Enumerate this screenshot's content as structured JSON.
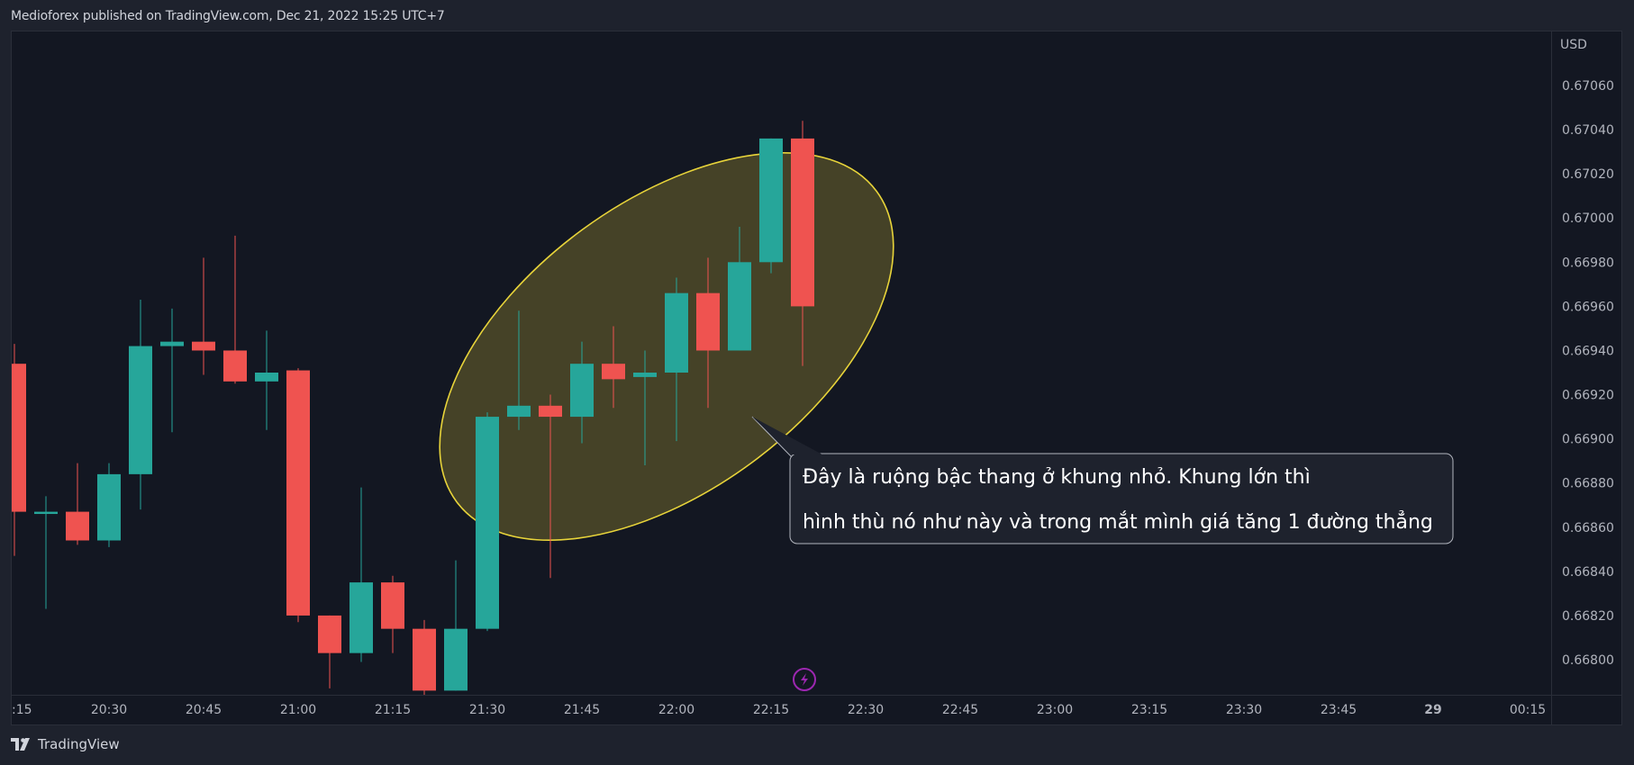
{
  "header": {
    "published": "Medioforex published on TradingView.com, Dec 21, 2022 15:25 UTC+7"
  },
  "footer": {
    "brand": "TradingView"
  },
  "chart_data": {
    "type": "candlestick",
    "currency": "USD",
    "price_axis": [
      "0.67060",
      "0.67040",
      "0.67020",
      "0.67000",
      "0.66980",
      "0.66960",
      "0.66940",
      "0.66920",
      "0.66900",
      "0.66880",
      "0.66860",
      "0.66840",
      "0.66820",
      "0.66800"
    ],
    "time_axis": [
      {
        "label": ":15",
        "t": "20:15",
        "bold": false
      },
      {
        "label": "20:30",
        "t": "20:30",
        "bold": false
      },
      {
        "label": "20:45",
        "t": "20:45",
        "bold": false
      },
      {
        "label": "21:00",
        "t": "21:00",
        "bold": false
      },
      {
        "label": "21:15",
        "t": "21:15",
        "bold": false
      },
      {
        "label": "21:30",
        "t": "21:30",
        "bold": false
      },
      {
        "label": "21:45",
        "t": "21:45",
        "bold": false
      },
      {
        "label": "22:00",
        "t": "22:00",
        "bold": false
      },
      {
        "label": "22:15",
        "t": "22:15",
        "bold": false
      },
      {
        "label": "22:30",
        "t": "22:30",
        "bold": false
      },
      {
        "label": "22:45",
        "t": "22:45",
        "bold": false
      },
      {
        "label": "23:00",
        "t": "23:00",
        "bold": false
      },
      {
        "label": "23:15",
        "t": "23:15",
        "bold": false
      },
      {
        "label": "23:30",
        "t": "23:30",
        "bold": false
      },
      {
        "label": "23:45",
        "t": "23:45",
        "bold": false
      },
      {
        "label": "29",
        "t": "00:00",
        "bold": true
      },
      {
        "label": "00:15",
        "t": "00:15",
        "bold": false
      }
    ],
    "interval_minutes": 5,
    "colors": {
      "up": "#26a69a",
      "down": "#ef5350",
      "annotation_border": "#e8d43a",
      "annotation_fill": "#57522a"
    },
    "candles": [
      {
        "t": "20:15",
        "open": 0.66934,
        "high": 0.66943,
        "low": 0.66847,
        "close": 0.66867
      },
      {
        "t": "20:20",
        "open": 0.66866,
        "high": 0.66874,
        "low": 0.66823,
        "close": 0.66867
      },
      {
        "t": "20:25",
        "open": 0.66867,
        "high": 0.66889,
        "low": 0.66852,
        "close": 0.66854
      },
      {
        "t": "20:30",
        "open": 0.66854,
        "high": 0.66889,
        "low": 0.66851,
        "close": 0.66884
      },
      {
        "t": "20:35",
        "open": 0.66884,
        "high": 0.66963,
        "low": 0.66868,
        "close": 0.66942
      },
      {
        "t": "20:40",
        "open": 0.66942,
        "high": 0.66959,
        "low": 0.66903,
        "close": 0.66944
      },
      {
        "t": "20:45",
        "open": 0.66944,
        "high": 0.66982,
        "low": 0.66929,
        "close": 0.6694
      },
      {
        "t": "20:50",
        "open": 0.6694,
        "high": 0.66992,
        "low": 0.66925,
        "close": 0.66926
      },
      {
        "t": "20:55",
        "open": 0.66926,
        "high": 0.66949,
        "low": 0.66904,
        "close": 0.6693
      },
      {
        "t": "21:00",
        "open": 0.66931,
        "high": 0.66932,
        "low": 0.66817,
        "close": 0.6682
      },
      {
        "t": "21:05",
        "open": 0.6682,
        "high": 0.6682,
        "low": 0.66787,
        "close": 0.66803
      },
      {
        "t": "21:10",
        "open": 0.66803,
        "high": 0.66878,
        "low": 0.66799,
        "close": 0.66835
      },
      {
        "t": "21:15",
        "open": 0.66835,
        "high": 0.66838,
        "low": 0.66803,
        "close": 0.66814
      },
      {
        "t": "21:20",
        "open": 0.66814,
        "high": 0.66818,
        "low": 0.66772,
        "close": 0.66786
      },
      {
        "t": "21:25",
        "open": 0.66786,
        "high": 0.66845,
        "low": 0.66786,
        "close": 0.66814
      },
      {
        "t": "21:30",
        "open": 0.66814,
        "high": 0.66912,
        "low": 0.66813,
        "close": 0.6691
      },
      {
        "t": "21:35",
        "open": 0.6691,
        "high": 0.66958,
        "low": 0.66904,
        "close": 0.66915
      },
      {
        "t": "21:40",
        "open": 0.66915,
        "high": 0.6692,
        "low": 0.66837,
        "close": 0.6691
      },
      {
        "t": "21:45",
        "open": 0.6691,
        "high": 0.66944,
        "low": 0.66898,
        "close": 0.66934
      },
      {
        "t": "21:50",
        "open": 0.66934,
        "high": 0.66951,
        "low": 0.66914,
        "close": 0.66927
      },
      {
        "t": "21:55",
        "open": 0.66928,
        "high": 0.6694,
        "low": 0.66888,
        "close": 0.6693
      },
      {
        "t": "22:00",
        "open": 0.6693,
        "high": 0.66973,
        "low": 0.66899,
        "close": 0.66966
      },
      {
        "t": "22:05",
        "open": 0.66966,
        "high": 0.66982,
        "low": 0.66914,
        "close": 0.6694
      },
      {
        "t": "22:10",
        "open": 0.6694,
        "high": 0.66996,
        "low": 0.6694,
        "close": 0.6698
      },
      {
        "t": "22:15",
        "open": 0.6698,
        "high": 0.67036,
        "low": 0.66975,
        "close": 0.67036
      },
      {
        "t": "22:20",
        "open": 0.67036,
        "high": 0.67044,
        "low": 0.66933,
        "close": 0.6696
      }
    ],
    "annotation": {
      "lines": [
        "Đây là ruộng bậc thang ở khung nhỏ. Khung lớn thì",
        "hình thù nó như này và trong mắt mình giá tăng 1 đường thẳng"
      ]
    }
  }
}
